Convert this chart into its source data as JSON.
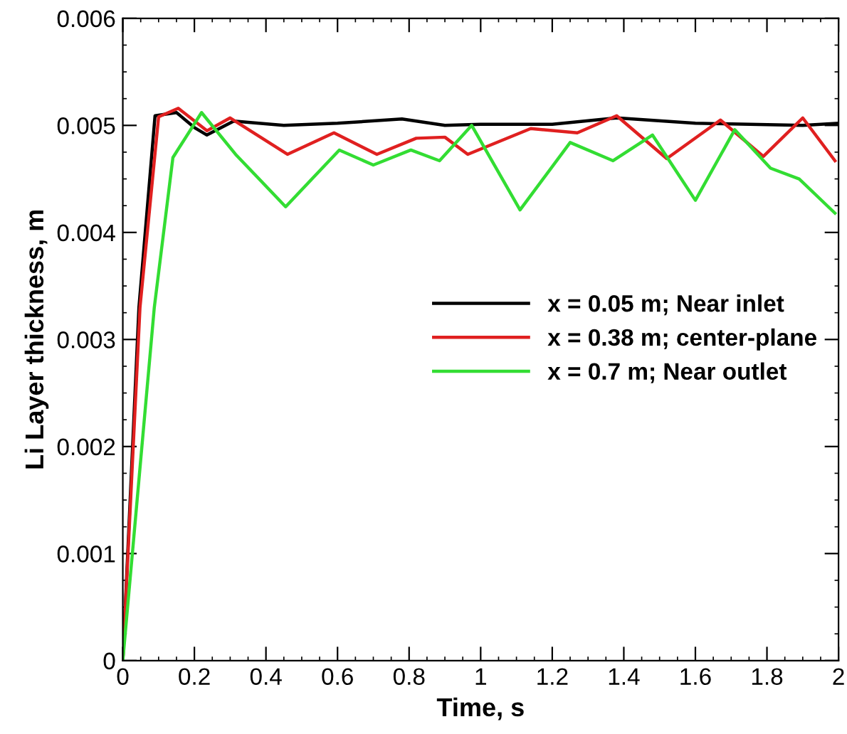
{
  "chart_data": {
    "type": "line",
    "xlabel": "Time, s",
    "ylabel": "Li Layer thickness, m",
    "xlim": [
      0,
      2
    ],
    "ylim": [
      0,
      0.006
    ],
    "xticks": [
      0,
      0.2,
      0.4,
      0.6,
      0.8,
      1,
      1.2,
      1.4,
      1.6,
      1.8,
      2
    ],
    "yticks": [
      0,
      0.001,
      0.002,
      0.003,
      0.004,
      0.005,
      0.006
    ],
    "grid": false,
    "legend": "center right",
    "marker": "none",
    "line_style": "solid",
    "series": [
      {
        "name": "x = 0.05 m; Near inlet",
        "color": "#000000",
        "x": [
          0,
          0.045,
          0.09,
          0.15,
          0.2,
          0.235,
          0.31,
          0.45,
          0.6,
          0.78,
          0.9,
          1.0,
          1.2,
          1.38,
          1.6,
          1.9,
          2.0
        ],
        "values": [
          0,
          0.0033,
          0.00509,
          0.00512,
          0.00498,
          0.00491,
          0.00504,
          0.005,
          0.00502,
          0.00506,
          0.005,
          0.00501,
          0.00501,
          0.00507,
          0.00502,
          0.005,
          0.00502
        ]
      },
      {
        "name": "x = 0.38 m; center-plane",
        "color": "#e02020",
        "x": [
          0,
          0.048,
          0.1,
          0.155,
          0.235,
          0.3,
          0.46,
          0.59,
          0.71,
          0.82,
          0.9,
          0.964,
          1.14,
          1.27,
          1.38,
          1.52,
          1.67,
          1.79,
          1.9,
          1.99
        ],
        "values": [
          0,
          0.0033,
          0.00508,
          0.00516,
          0.00495,
          0.00507,
          0.00473,
          0.00493,
          0.00473,
          0.00488,
          0.00489,
          0.00473,
          0.00497,
          0.00493,
          0.00509,
          0.00469,
          0.00505,
          0.00471,
          0.00507,
          0.00467
        ]
      },
      {
        "name": "x = 0.7 m; Near outlet",
        "color": "#33dd33",
        "x": [
          0,
          0.04,
          0.088,
          0.14,
          0.22,
          0.315,
          0.455,
          0.605,
          0.7,
          0.805,
          0.885,
          0.975,
          1.11,
          1.25,
          1.37,
          1.48,
          1.6,
          1.71,
          1.81,
          1.89,
          1.99
        ],
        "values": [
          0,
          0.0015,
          0.0033,
          0.0047,
          0.00512,
          0.00473,
          0.00424,
          0.00477,
          0.00463,
          0.00477,
          0.00467,
          0.005,
          0.00421,
          0.00484,
          0.00467,
          0.00491,
          0.0043,
          0.00496,
          0.0046,
          0.0045,
          0.00418
        ]
      }
    ]
  }
}
